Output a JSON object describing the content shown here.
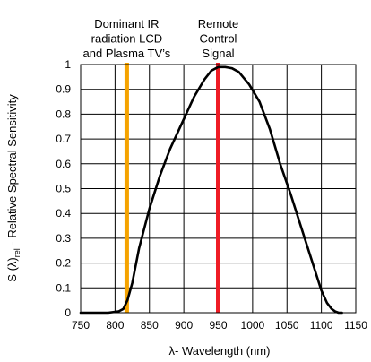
{
  "chart_data": {
    "type": "line",
    "xlabel": "λ- Wavelength (nm)",
    "ylabel": {
      "prefix": "S (λ)",
      "subscript": "rel",
      "suffix": " - Relative Spectral Sensitivity"
    },
    "xlim": [
      750,
      1150
    ],
    "ylim": [
      0,
      1
    ],
    "xticks": [
      "750",
      "800",
      "850",
      "900",
      "950",
      "1000",
      "1050",
      "1100",
      "1150"
    ],
    "yticks": [
      "0",
      "0.1",
      "0.2",
      "0.3",
      "0.4",
      "0.5",
      "0.6",
      "0.7",
      "0.8",
      "0.9",
      "1"
    ],
    "grid": true,
    "series": [
      {
        "color": "#000000",
        "x": [
          750,
          790,
          805,
          812,
          818,
          825,
          835,
          850,
          865,
          880,
          900,
          915,
          930,
          940,
          950,
          960,
          970,
          980,
          995,
          1010,
          1025,
          1040,
          1055,
          1070,
          1085,
          1100,
          1108,
          1115,
          1120,
          1125,
          1130
        ],
        "y": [
          0,
          0,
          0.005,
          0.015,
          0.05,
          0.12,
          0.26,
          0.42,
          0.55,
          0.66,
          0.78,
          0.87,
          0.94,
          0.975,
          0.99,
          0.99,
          0.985,
          0.97,
          0.92,
          0.85,
          0.74,
          0.6,
          0.48,
          0.35,
          0.22,
          0.09,
          0.04,
          0.015,
          0.005,
          0.0,
          0.0
        ]
      }
    ],
    "markers": [
      {
        "x": 817,
        "color": "#f5a300",
        "label": [
          "Dominant IR",
          "radiation LCD",
          "and Plasma TV’s"
        ]
      },
      {
        "x": 950,
        "color": "#ef1c25",
        "label": [
          "Remote",
          "Control",
          "Signal"
        ]
      }
    ]
  }
}
